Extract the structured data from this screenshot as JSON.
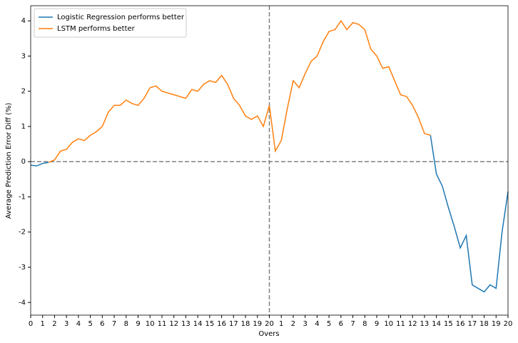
{
  "chart_data": {
    "type": "line",
    "xlabel": "Overs",
    "ylabel": "Average Prediction Error Diff (%)",
    "x": [
      0,
      0.5,
      1,
      1.5,
      2,
      2.5,
      3,
      3.5,
      4,
      4.5,
      5,
      5.5,
      6,
      6.5,
      7,
      7.5,
      8,
      8.5,
      9,
      9.5,
      10,
      10.5,
      11,
      11.5,
      12,
      12.5,
      13,
      13.5,
      14,
      14.5,
      15,
      15.5,
      16,
      16.5,
      17,
      17.5,
      18,
      18.5,
      19,
      19.5,
      20,
      20.5,
      21,
      21.5,
      22,
      22.5,
      23,
      23.5,
      24,
      24.5,
      25,
      25.5,
      26,
      26.5,
      27,
      27.5,
      28,
      28.5,
      29,
      29.5,
      30,
      30.5,
      31,
      31.5,
      32,
      32.5,
      33,
      33.5,
      34,
      34.5,
      35,
      35.5,
      36,
      36.5,
      37,
      37.5,
      38,
      38.5,
      39,
      39.5,
      40
    ],
    "series": [
      {
        "name": "Logistic Regression performs better",
        "color": "#1f77b4",
        "values": [
          -0.1,
          -0.12,
          -0.05,
          -0.02,
          null,
          null,
          null,
          null,
          null,
          null,
          null,
          null,
          null,
          null,
          null,
          null,
          null,
          null,
          null,
          null,
          null,
          null,
          null,
          null,
          null,
          null,
          null,
          null,
          null,
          null,
          null,
          null,
          null,
          null,
          null,
          null,
          null,
          null,
          null,
          null,
          null,
          null,
          null,
          null,
          null,
          null,
          null,
          null,
          null,
          null,
          null,
          null,
          null,
          null,
          null,
          null,
          null,
          null,
          null,
          null,
          null,
          null,
          null,
          null,
          null,
          null,
          null,
          0.75,
          -0.35,
          -0.7,
          -1.3,
          -1.85,
          -2.45,
          -2.1,
          -3.5,
          -3.6,
          -3.7,
          -3.5,
          -3.6,
          -2.0,
          -0.85
        ]
      },
      {
        "name": "LSTM performs better",
        "color": "#ff7f0e",
        "values": [
          null,
          null,
          null,
          -0.02,
          0.05,
          0.3,
          0.35,
          0.55,
          0.65,
          0.6,
          0.75,
          0.85,
          1.0,
          1.4,
          1.6,
          1.6,
          1.75,
          1.65,
          1.6,
          1.8,
          2.1,
          2.15,
          2.0,
          1.95,
          1.9,
          1.85,
          1.8,
          2.05,
          2.0,
          2.2,
          2.3,
          2.25,
          2.45,
          2.2,
          1.8,
          1.6,
          1.3,
          1.2,
          1.3,
          1.0,
          1.6,
          0.3,
          0.6,
          1.5,
          2.3,
          2.1,
          2.5,
          2.85,
          3.0,
          3.4,
          3.7,
          3.75,
          4.0,
          3.75,
          3.95,
          3.9,
          3.75,
          3.2,
          3.0,
          2.65,
          2.7,
          2.3,
          1.9,
          1.85,
          1.6,
          1.25,
          0.8,
          0.75,
          null,
          null,
          null,
          null,
          null,
          null,
          null,
          null,
          null,
          null,
          null,
          null,
          null
        ]
      }
    ],
    "xlim": [
      0,
      40
    ],
    "ylim": [
      -4.36,
      4.43
    ],
    "xticks": [
      0,
      1,
      2,
      3,
      4,
      5,
      6,
      7,
      8,
      9,
      10,
      11,
      12,
      13,
      14,
      15,
      16,
      17,
      18,
      19,
      20,
      {
        "value": 21,
        "label": "1"
      },
      {
        "value": 22,
        "label": "2"
      },
      {
        "value": 23,
        "label": "3"
      },
      {
        "value": 24,
        "label": "4"
      },
      {
        "value": 25,
        "label": "5"
      },
      {
        "value": 26,
        "label": "6"
      },
      {
        "value": 27,
        "label": "7"
      },
      {
        "value": 28,
        "label": "8"
      },
      {
        "value": 29,
        "label": "9"
      },
      {
        "value": 30,
        "label": "10"
      },
      {
        "value": 31,
        "label": "11"
      },
      {
        "value": 32,
        "label": "12"
      },
      {
        "value": 33,
        "label": "13"
      },
      {
        "value": 34,
        "label": "14"
      },
      {
        "value": 35,
        "label": "15"
      },
      {
        "value": 36,
        "label": "16"
      },
      {
        "value": 37,
        "label": "17"
      },
      {
        "value": 38,
        "label": "18"
      },
      {
        "value": 39,
        "label": "19"
      },
      {
        "value": 40,
        "label": "20"
      }
    ],
    "yticks": [
      -4,
      -3,
      -2,
      -1,
      0,
      1,
      2,
      3,
      4
    ],
    "reference_lines": {
      "x": 20,
      "y": 0
    },
    "legend": "upper left"
  }
}
